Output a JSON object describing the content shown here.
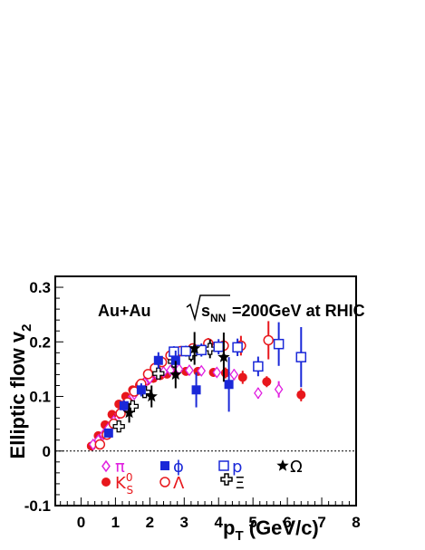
{
  "chart_data": {
    "type": "scatter",
    "title": "",
    "annotation": {
      "prefix": "Au+Au ",
      "sqrt_s": "s",
      "sqrt_s_sub": "NN",
      "suffix": "=200GeV at RHIC"
    },
    "xlabel": {
      "main": "p",
      "sub": "T",
      "unit": " (GeV/c)"
    },
    "ylabel": {
      "main": "Elliptic flow v",
      "sub": "2"
    },
    "xlim": [
      -0.75,
      8
    ],
    "ylim": [
      -0.1,
      0.32
    ],
    "xticks": [
      0,
      1,
      2,
      3,
      4,
      5,
      6,
      7,
      8
    ],
    "yticks": [
      -0.1,
      0,
      0.1,
      0.2,
      0.3
    ],
    "ytick_labels": [
      "-0.1",
      "0",
      "0.1",
      "0.2",
      "0.3"
    ],
    "grid": false,
    "reference_line": {
      "y": 0,
      "style": "dotted"
    },
    "colors": {
      "pi": "#e020e0",
      "ks": "#e8171c",
      "phi": "#1a28d8",
      "lambda": "#e8171c",
      "p": "#1a28d8",
      "xi": "#000000",
      "omega": "#000000"
    },
    "series": [
      {
        "name": "π",
        "marker": "open-diamond",
        "color": "#e020e0",
        "points": [
          {
            "x": 0.35,
            "y": 0.012,
            "err": 0.003
          },
          {
            "x": 0.5,
            "y": 0.02,
            "err": 0.003
          },
          {
            "x": 0.65,
            "y": 0.03,
            "err": 0.003
          },
          {
            "x": 0.8,
            "y": 0.042,
            "err": 0.003
          },
          {
            "x": 0.95,
            "y": 0.055,
            "err": 0.003
          },
          {
            "x": 1.1,
            "y": 0.068,
            "err": 0.003
          },
          {
            "x": 1.25,
            "y": 0.08,
            "err": 0.003
          },
          {
            "x": 1.4,
            "y": 0.092,
            "err": 0.003
          },
          {
            "x": 1.55,
            "y": 0.104,
            "err": 0.003
          },
          {
            "x": 1.7,
            "y": 0.115,
            "err": 0.003
          },
          {
            "x": 1.85,
            "y": 0.125,
            "err": 0.003
          },
          {
            "x": 2.0,
            "y": 0.133,
            "err": 0.003
          },
          {
            "x": 2.2,
            "y": 0.14,
            "err": 0.004
          },
          {
            "x": 2.4,
            "y": 0.145,
            "err": 0.004
          },
          {
            "x": 2.6,
            "y": 0.148,
            "err": 0.004
          },
          {
            "x": 2.85,
            "y": 0.15,
            "err": 0.005
          },
          {
            "x": 3.15,
            "y": 0.148,
            "err": 0.006
          },
          {
            "x": 3.5,
            "y": 0.147,
            "err": 0.007
          },
          {
            "x": 3.95,
            "y": 0.144,
            "err": 0.008
          },
          {
            "x": 4.45,
            "y": 0.14,
            "err": 0.01
          },
          {
            "x": 5.15,
            "y": 0.106,
            "err": 0.01
          },
          {
            "x": 5.75,
            "y": 0.113,
            "err": 0.015
          }
        ]
      },
      {
        "name": "K",
        "name_sup": "0",
        "name_sub": "S",
        "marker": "filled-circle",
        "color": "#e8171c",
        "points": [
          {
            "x": 0.3,
            "y": 0.009,
            "err": 0.002
          },
          {
            "x": 0.5,
            "y": 0.028,
            "err": 0.002
          },
          {
            "x": 0.7,
            "y": 0.048,
            "err": 0.002
          },
          {
            "x": 0.9,
            "y": 0.067,
            "err": 0.002
          },
          {
            "x": 1.1,
            "y": 0.086,
            "err": 0.002
          },
          {
            "x": 1.3,
            "y": 0.1,
            "err": 0.002
          },
          {
            "x": 1.5,
            "y": 0.112,
            "err": 0.002
          },
          {
            "x": 1.7,
            "y": 0.121,
            "err": 0.003
          },
          {
            "x": 1.9,
            "y": 0.128,
            "err": 0.003
          },
          {
            "x": 2.1,
            "y": 0.133,
            "err": 0.003
          },
          {
            "x": 2.3,
            "y": 0.138,
            "err": 0.003
          },
          {
            "x": 2.5,
            "y": 0.141,
            "err": 0.004
          },
          {
            "x": 2.75,
            "y": 0.144,
            "err": 0.005
          },
          {
            "x": 3.05,
            "y": 0.146,
            "err": 0.006
          },
          {
            "x": 3.4,
            "y": 0.146,
            "err": 0.007
          },
          {
            "x": 3.85,
            "y": 0.144,
            "err": 0.008
          },
          {
            "x": 4.2,
            "y": 0.143,
            "err": 0.01
          },
          {
            "x": 4.7,
            "y": 0.135,
            "err": 0.012
          },
          {
            "x": 5.4,
            "y": 0.127,
            "err": 0.01
          },
          {
            "x": 6.4,
            "y": 0.103,
            "err": 0.012
          }
        ]
      },
      {
        "name": "ϕ",
        "marker": "filled-square",
        "color": "#1a28d8",
        "points": [
          {
            "x": 0.8,
            "y": 0.033,
            "err": 0.008
          },
          {
            "x": 1.25,
            "y": 0.083,
            "err": 0.01
          },
          {
            "x": 1.75,
            "y": 0.112,
            "err": 0.012
          },
          {
            "x": 2.25,
            "y": 0.166,
            "err": 0.015
          },
          {
            "x": 2.75,
            "y": 0.166,
            "err": 0.018
          },
          {
            "x": 3.35,
            "y": 0.112,
            "err": 0.032
          },
          {
            "x": 4.3,
            "y": 0.122,
            "err": 0.05
          }
        ]
      },
      {
        "name": "Λ",
        "marker": "open-circle",
        "color": "#e8171c",
        "points": [
          {
            "x": 0.55,
            "y": 0.012,
            "err": 0.002
          },
          {
            "x": 0.75,
            "y": 0.03,
            "err": 0.002
          },
          {
            "x": 0.95,
            "y": 0.05,
            "err": 0.002
          },
          {
            "x": 1.15,
            "y": 0.069,
            "err": 0.003
          },
          {
            "x": 1.35,
            "y": 0.089,
            "err": 0.003
          },
          {
            "x": 1.55,
            "y": 0.109,
            "err": 0.003
          },
          {
            "x": 1.75,
            "y": 0.123,
            "err": 0.003
          },
          {
            "x": 1.95,
            "y": 0.141,
            "err": 0.004
          },
          {
            "x": 2.15,
            "y": 0.152,
            "err": 0.004
          },
          {
            "x": 2.35,
            "y": 0.163,
            "err": 0.005
          },
          {
            "x": 2.6,
            "y": 0.175,
            "err": 0.005
          },
          {
            "x": 2.9,
            "y": 0.183,
            "err": 0.006
          },
          {
            "x": 3.25,
            "y": 0.188,
            "err": 0.008
          },
          {
            "x": 3.7,
            "y": 0.197,
            "err": 0.01
          },
          {
            "x": 4.15,
            "y": 0.193,
            "err": 0.013
          },
          {
            "x": 4.65,
            "y": 0.193,
            "err": 0.018
          },
          {
            "x": 5.45,
            "y": 0.203,
            "err": 0.035
          }
        ]
      },
      {
        "name": "p",
        "marker": "open-square",
        "color": "#1a28d8",
        "points": [
          {
            "x": 2.7,
            "y": 0.182,
            "err": 0.01
          },
          {
            "x": 3.05,
            "y": 0.183,
            "err": 0.01
          },
          {
            "x": 3.5,
            "y": 0.185,
            "err": 0.012
          },
          {
            "x": 4.0,
            "y": 0.191,
            "err": 0.014
          },
          {
            "x": 4.55,
            "y": 0.19,
            "err": 0.016
          },
          {
            "x": 5.15,
            "y": 0.155,
            "err": 0.018
          },
          {
            "x": 5.75,
            "y": 0.196,
            "err": 0.04
          },
          {
            "x": 6.4,
            "y": 0.172,
            "err": 0.055
          }
        ]
      },
      {
        "name": "Ξ",
        "marker": "open-cross",
        "color": "#000000",
        "points": [
          {
            "x": 1.1,
            "y": 0.045,
            "err": 0.006
          },
          {
            "x": 1.5,
            "y": 0.082,
            "err": 0.008
          },
          {
            "x": 1.85,
            "y": 0.108,
            "err": 0.01
          },
          {
            "x": 2.25,
            "y": 0.142,
            "err": 0.01
          },
          {
            "x": 2.7,
            "y": 0.164,
            "err": 0.012
          },
          {
            "x": 3.2,
            "y": 0.178,
            "err": 0.014
          },
          {
            "x": 3.75,
            "y": 0.187,
            "err": 0.017
          }
        ]
      },
      {
        "name": "Ω",
        "marker": "filled-star",
        "color": "#000000",
        "points": [
          {
            "x": 1.4,
            "y": 0.07,
            "err": 0.018
          },
          {
            "x": 2.05,
            "y": 0.1,
            "err": 0.02
          },
          {
            "x": 2.75,
            "y": 0.14,
            "err": 0.025
          },
          {
            "x": 3.3,
            "y": 0.188,
            "err": 0.03
          },
          {
            "x": 4.15,
            "y": 0.172,
            "err": 0.045
          }
        ]
      }
    ]
  }
}
